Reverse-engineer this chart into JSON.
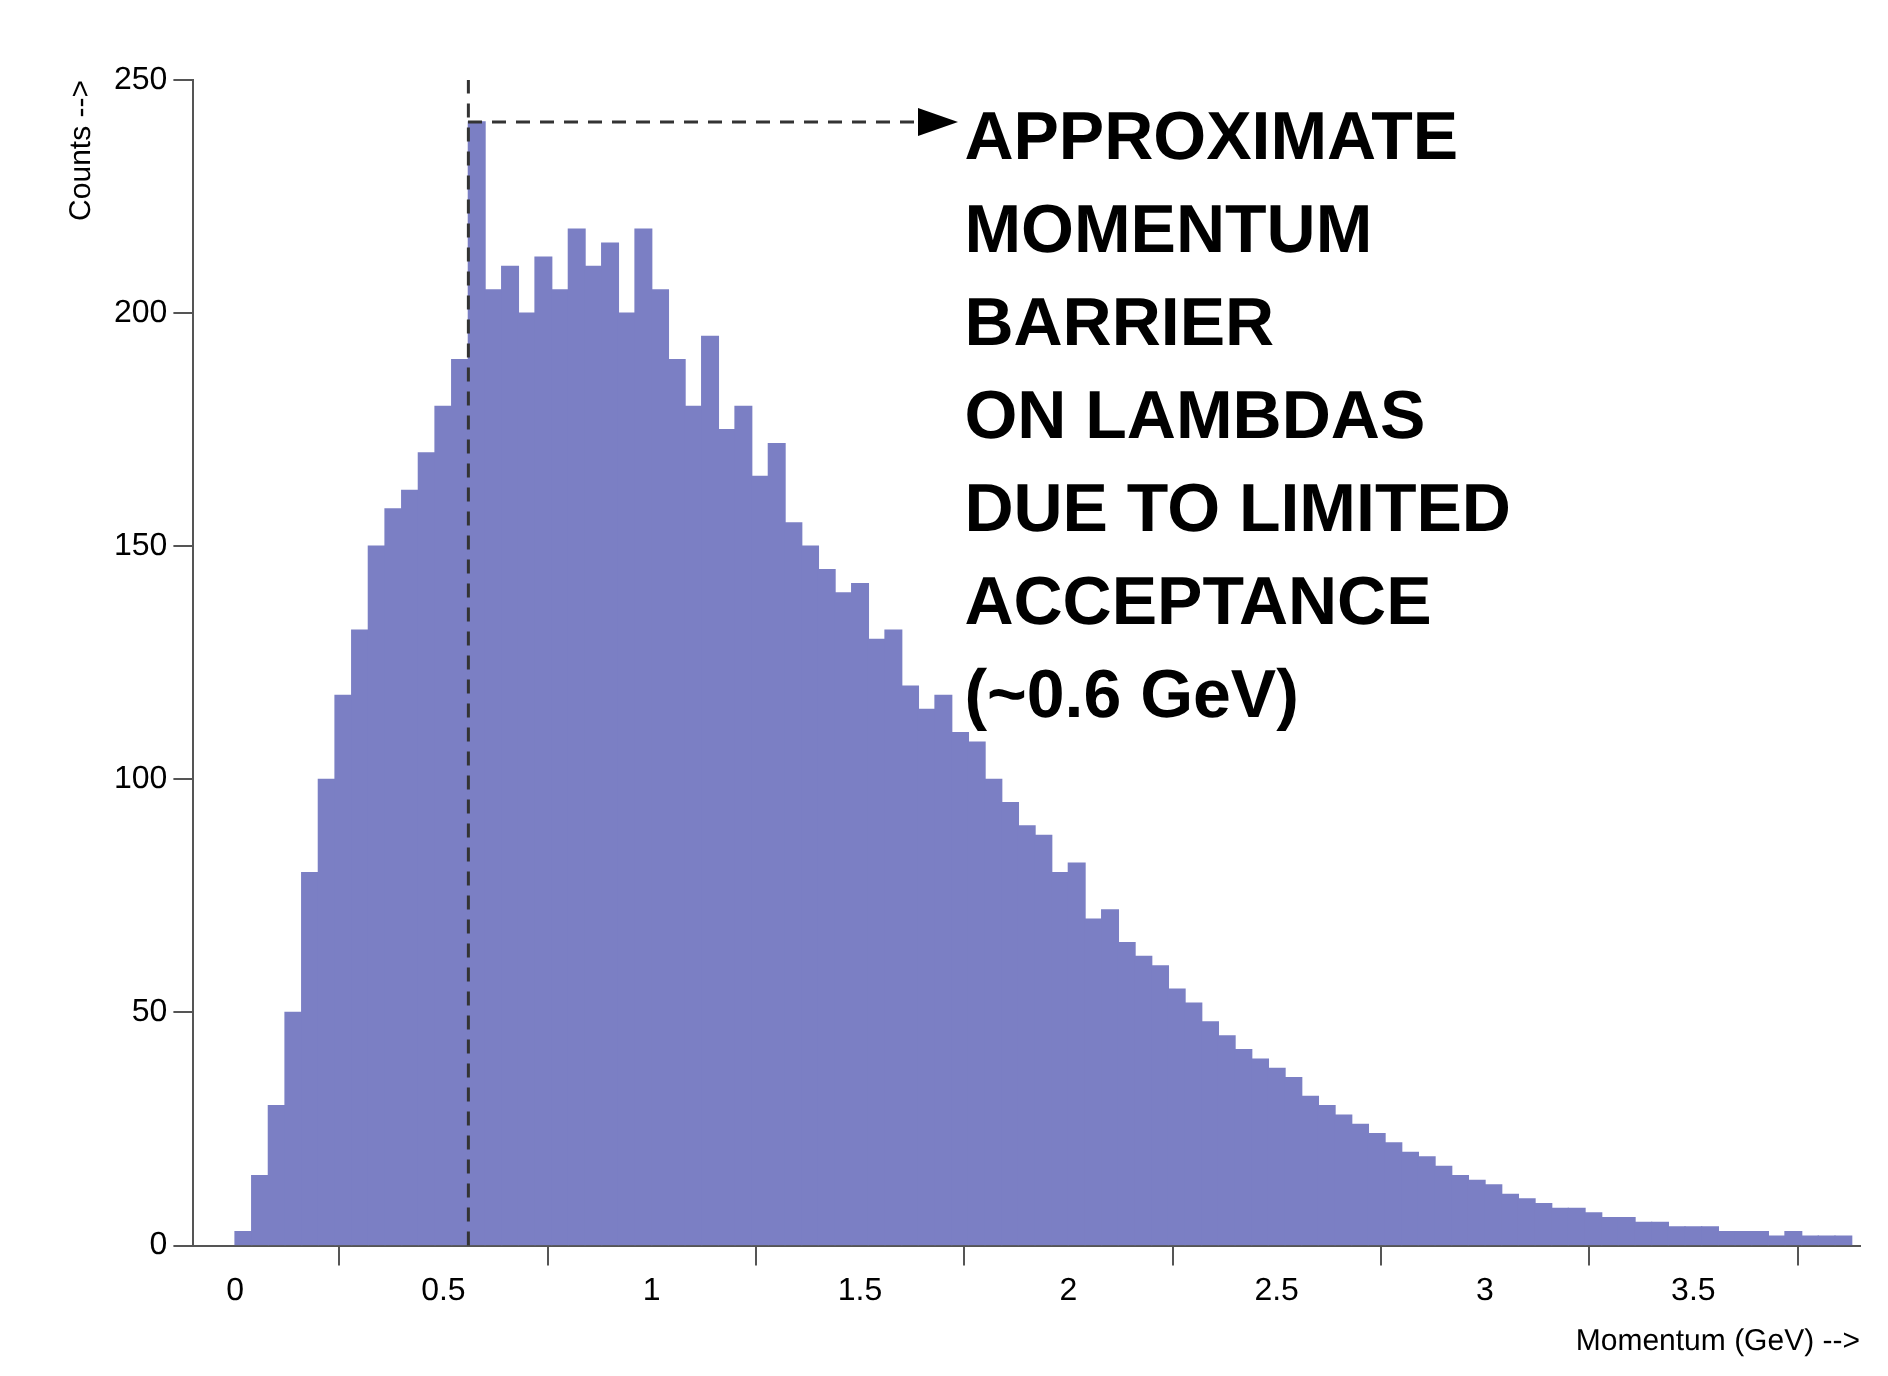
{
  "chart_data": {
    "type": "histogram",
    "xlabel": "Momentum (GeV) -->",
    "ylabel": "Counts -->",
    "bins": [
      0,
      0.04,
      0.08,
      0.12,
      0.16,
      0.2,
      0.24,
      0.28,
      0.32,
      0.36,
      0.4,
      0.44,
      0.48,
      0.52,
      0.56,
      0.6,
      0.64,
      0.68,
      0.72,
      0.76,
      0.8,
      0.84,
      0.88,
      0.92,
      0.96,
      1,
      1.04,
      1.08,
      1.12,
      1.16,
      1.2,
      1.24,
      1.28,
      1.32,
      1.36,
      1.4,
      1.44,
      1.48,
      1.52,
      1.56,
      1.6,
      1.64,
      1.68,
      1.72,
      1.76,
      1.8,
      1.84,
      1.88,
      1.92,
      1.96,
      2,
      2.04,
      2.08,
      2.12,
      2.16,
      2.2,
      2.24,
      2.28,
      2.32,
      2.36,
      2.4,
      2.44,
      2.48,
      2.52,
      2.56,
      2.6,
      2.64,
      2.68,
      2.72,
      2.76,
      2.8,
      2.84,
      2.88,
      2.92,
      2.96,
      3,
      3.04,
      3.08,
      3.12,
      3.16,
      3.2,
      3.24,
      3.28,
      3.32,
      3.36,
      3.4,
      3.44,
      3.48,
      3.52,
      3.56,
      3.6,
      3.64,
      3.68,
      3.72,
      3.76,
      3.8,
      3.84,
      3.88
    ],
    "values": [
      3,
      15,
      30,
      50,
      80,
      100,
      118,
      132,
      150,
      158,
      162,
      170,
      180,
      190,
      241,
      205,
      210,
      200,
      212,
      205,
      218,
      210,
      215,
      200,
      218,
      205,
      190,
      180,
      195,
      175,
      180,
      165,
      172,
      155,
      150,
      145,
      140,
      142,
      130,
      132,
      120,
      115,
      118,
      110,
      108,
      100,
      95,
      90,
      88,
      80,
      82,
      70,
      72,
      65,
      62,
      60,
      55,
      52,
      48,
      45,
      42,
      40,
      38,
      36,
      32,
      30,
      28,
      26,
      24,
      22,
      20,
      19,
      17,
      15,
      14,
      13,
      11,
      10,
      9,
      8,
      8,
      7,
      6,
      6,
      5,
      5,
      4,
      4,
      4,
      3,
      3,
      3,
      2,
      3,
      2,
      2,
      2
    ],
    "color": "#7b7fc4",
    "xlim": [
      -0.1,
      3.9
    ],
    "xticks": [
      0,
      0.5,
      1,
      1.5,
      2,
      2.5,
      3,
      3.5
    ],
    "ylim": [
      0,
      250
    ],
    "yticks": [
      0,
      50,
      100,
      150,
      200,
      250
    ],
    "grid": false,
    "legend": false,
    "ref_lines": [
      {
        "axis": "x",
        "value": 0.56,
        "color": "#333333",
        "line_style": "dashed"
      }
    ],
    "annotations": [
      {
        "text": "APPROXIMATE\nMOMENTUM\nBARRIER\nON LAMBDAS\nDUE TO LIMITED\nACCEPTANCE\n(~0.6 GeV)",
        "x": 0.56,
        "y": 241
      }
    ]
  }
}
